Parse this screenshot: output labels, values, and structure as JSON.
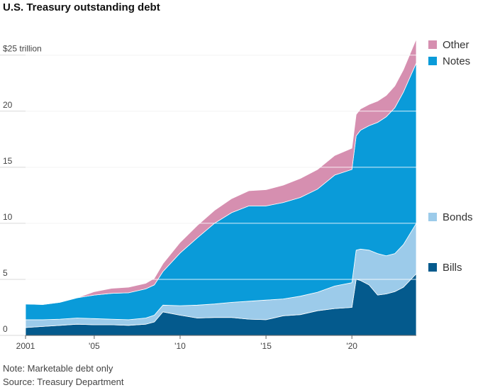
{
  "header": {
    "title": "U.S. Treasury outstanding debt"
  },
  "footer": {
    "note": "Note: Marketable debt only",
    "source": "Source: Treasury Department"
  },
  "chart_data": {
    "type": "area",
    "stacked": true,
    "title": "U.S. Treasury outstanding debt",
    "ylabel_unit_tick": "$25 trillion",
    "y_tick_values": [
      0,
      5,
      10,
      15,
      20,
      25
    ],
    "y_tick_labels": [
      "0",
      "5",
      "10",
      "15",
      "20",
      "$25 trillion"
    ],
    "ylim": [
      0,
      26.5
    ],
    "xlim": [
      2001.0,
      2023.75
    ],
    "x_tick_values": [
      2001,
      2005,
      2010,
      2015,
      2020
    ],
    "x_tick_labels": [
      "2001",
      "'05",
      "'10",
      "'15",
      "'20"
    ],
    "grid": "horizontal",
    "legend_placement": "right, aligned to series",
    "colors": {
      "Bills": "#045a8d",
      "Bonds": "#9ccbea",
      "Notes": "#0a9bd9",
      "Other": "#d68fb0"
    },
    "x": [
      2001.0,
      2002.0,
      2003.0,
      2004.0,
      2005.0,
      2006.0,
      2007.0,
      2008.0,
      2008.5,
      2009.0,
      2010.0,
      2011.0,
      2012.0,
      2013.0,
      2014.0,
      2015.0,
      2016.0,
      2017.0,
      2018.0,
      2019.0,
      2020.0,
      2020.25,
      2020.5,
      2021.0,
      2021.5,
      2022.0,
      2022.5,
      2023.0,
      2023.75
    ],
    "series": [
      {
        "name": "Bills",
        "values": [
          0.7,
          0.8,
          0.9,
          1.0,
          0.95,
          0.95,
          0.9,
          1.0,
          1.2,
          2.1,
          1.8,
          1.55,
          1.6,
          1.6,
          1.45,
          1.4,
          1.75,
          1.85,
          2.2,
          2.4,
          2.5,
          5.0,
          4.9,
          4.5,
          3.6,
          3.7,
          3.9,
          4.3,
          5.5
        ]
      },
      {
        "name": "Bonds",
        "values": [
          0.7,
          0.6,
          0.55,
          0.55,
          0.55,
          0.5,
          0.5,
          0.55,
          0.6,
          0.6,
          0.85,
          1.15,
          1.2,
          1.35,
          1.6,
          1.75,
          1.5,
          1.65,
          1.65,
          2.0,
          2.2,
          2.6,
          2.8,
          3.1,
          3.7,
          3.4,
          3.4,
          3.8,
          4.5
        ]
      },
      {
        "name": "Notes",
        "values": [
          1.4,
          1.35,
          1.5,
          1.8,
          2.1,
          2.3,
          2.4,
          2.6,
          2.7,
          3.0,
          4.7,
          6.0,
          7.2,
          8.0,
          8.5,
          8.4,
          8.6,
          8.8,
          9.2,
          9.9,
          10.1,
          10.2,
          10.6,
          11.1,
          11.7,
          12.4,
          13.0,
          13.6,
          14.3
        ]
      },
      {
        "name": "Other",
        "values": [
          0.0,
          0.0,
          0.0,
          0.0,
          0.3,
          0.45,
          0.5,
          0.5,
          0.6,
          0.7,
          0.95,
          1.1,
          1.15,
          1.25,
          1.35,
          1.45,
          1.55,
          1.7,
          1.75,
          1.75,
          1.9,
          1.9,
          1.9,
          1.9,
          1.9,
          1.9,
          1.95,
          2.0,
          2.15
        ]
      }
    ]
  }
}
